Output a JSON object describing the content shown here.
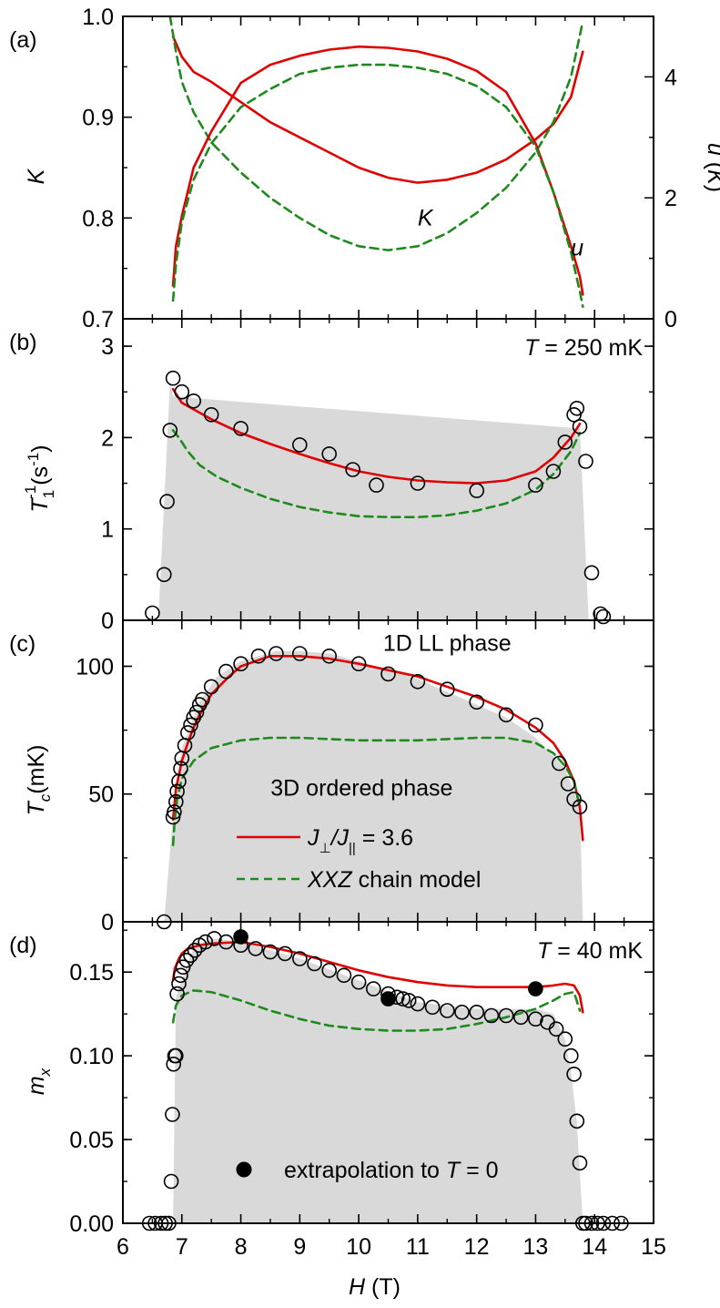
{
  "chart_data": [
    {
      "panel_label": "(a)",
      "type": "line",
      "xlim": [
        6,
        15
      ],
      "ylabel": "K",
      "ylim": [
        0.7,
        1.0
      ],
      "yticks": [
        "0.7",
        "0.8",
        "0.9",
        "1.0"
      ],
      "y2label": "u (K)",
      "y2lim": [
        0,
        5
      ],
      "y2ticks": [
        "0",
        "2",
        "4"
      ],
      "annotations": [
        "K",
        "u"
      ],
      "series": [
        {
          "role": "K-red",
          "axis": "left",
          "color": "#e00000",
          "style": "solid",
          "x": [
            6.85,
            7.0,
            7.2,
            7.5,
            8.0,
            8.5,
            9.0,
            9.5,
            10.0,
            10.5,
            11.0,
            11.5,
            12.0,
            12.5,
            13.0,
            13.3,
            13.6,
            13.8
          ],
          "y": [
            0.98,
            0.96,
            0.945,
            0.935,
            0.915,
            0.895,
            0.88,
            0.865,
            0.85,
            0.84,
            0.835,
            0.838,
            0.845,
            0.858,
            0.878,
            0.893,
            0.92,
            0.965
          ]
        },
        {
          "role": "K-green",
          "axis": "left",
          "color": "#1e8a1e",
          "style": "dashed",
          "x": [
            6.8,
            6.9,
            7.0,
            7.2,
            7.5,
            8.0,
            8.5,
            9.0,
            9.5,
            10.0,
            10.5,
            11.0,
            11.5,
            12.0,
            12.5,
            13.0,
            13.3,
            13.6,
            13.8
          ],
          "y": [
            1.0,
            0.965,
            0.935,
            0.905,
            0.875,
            0.845,
            0.82,
            0.8,
            0.783,
            0.772,
            0.768,
            0.772,
            0.785,
            0.805,
            0.83,
            0.865,
            0.895,
            0.94,
            0.995
          ]
        },
        {
          "role": "u-red",
          "axis": "right",
          "color": "#e00000",
          "style": "solid",
          "x": [
            6.85,
            6.9,
            7.0,
            7.2,
            7.5,
            8.0,
            8.5,
            9.0,
            9.5,
            10.0,
            10.5,
            11.0,
            11.5,
            12.0,
            12.5,
            13.0,
            13.3,
            13.6,
            13.75,
            13.8
          ],
          "y": [
            0.55,
            1.2,
            1.7,
            2.5,
            3.1,
            3.9,
            4.2,
            4.35,
            4.45,
            4.5,
            4.48,
            4.42,
            4.3,
            4.1,
            3.75,
            2.9,
            2.1,
            1.2,
            0.7,
            0.4
          ]
        },
        {
          "role": "u-green",
          "axis": "right",
          "color": "#1e8a1e",
          "style": "dashed",
          "x": [
            6.85,
            6.9,
            7.0,
            7.2,
            7.5,
            8.0,
            8.5,
            9.0,
            9.5,
            10.0,
            10.5,
            11.0,
            11.5,
            12.0,
            12.5,
            13.0,
            13.3,
            13.6,
            13.75,
            13.8
          ],
          "y": [
            0.3,
            0.9,
            1.6,
            2.3,
            2.9,
            3.5,
            3.8,
            4.05,
            4.15,
            4.2,
            4.2,
            4.15,
            4.05,
            3.85,
            3.5,
            2.85,
            2.1,
            1.1,
            0.45,
            0.2
          ]
        }
      ]
    },
    {
      "panel_label": "(b)",
      "type": "scatter",
      "xlim": [
        6,
        15
      ],
      "ylabel": "T₁⁻¹(s⁻¹)",
      "ylim": [
        0,
        3.3
      ],
      "yticks": [
        "0",
        "1",
        "2",
        "3"
      ],
      "annotation": "T = 250 mK",
      "shade": {
        "x": [
          6.6,
          6.8,
          6.85,
          13.75,
          13.9
        ],
        "y": [
          0,
          2.6,
          2.45,
          2.1,
          0
        ]
      },
      "points": {
        "x": [
          6.5,
          6.7,
          6.75,
          6.8,
          6.85,
          7.0,
          7.2,
          7.5,
          8.0,
          9.0,
          9.5,
          9.9,
          10.3,
          11.0,
          12.0,
          13.0,
          13.3,
          13.5,
          13.65,
          13.7,
          13.75,
          13.85,
          13.95,
          14.1,
          14.15
        ],
        "y": [
          0.08,
          0.5,
          1.3,
          2.08,
          2.65,
          2.5,
          2.4,
          2.25,
          2.1,
          1.92,
          1.82,
          1.65,
          1.48,
          1.5,
          1.42,
          1.48,
          1.63,
          1.95,
          2.25,
          2.32,
          2.12,
          1.74,
          0.52,
          0.07,
          0.04
        ]
      },
      "series": [
        {
          "role": "red",
          "color": "#e00000",
          "style": "solid",
          "x": [
            6.85,
            7.0,
            7.5,
            8.0,
            8.5,
            9.0,
            9.5,
            10.0,
            10.5,
            11.0,
            11.5,
            12.0,
            12.5,
            13.0,
            13.3,
            13.6,
            13.75
          ],
          "y": [
            2.53,
            2.38,
            2.2,
            2.05,
            1.93,
            1.82,
            1.72,
            1.63,
            1.57,
            1.53,
            1.51,
            1.5,
            1.53,
            1.63,
            1.78,
            2.0,
            2.15
          ]
        },
        {
          "role": "green",
          "color": "#1e8a1e",
          "style": "dashed",
          "x": [
            6.85,
            6.95,
            7.1,
            7.3,
            7.6,
            8.0,
            8.5,
            9.0,
            9.5,
            10.0,
            10.5,
            11.0,
            11.5,
            12.0,
            12.5,
            13.0,
            13.3,
            13.6,
            13.75
          ],
          "y": [
            2.08,
            2.0,
            1.85,
            1.7,
            1.57,
            1.45,
            1.33,
            1.24,
            1.18,
            1.14,
            1.13,
            1.13,
            1.15,
            1.2,
            1.28,
            1.43,
            1.6,
            1.85,
            2.05
          ]
        }
      ]
    },
    {
      "panel_label": "(c)",
      "type": "scatter",
      "xlim": [
        6,
        15
      ],
      "ylabel": "Tc (mK)",
      "ylim": [
        0,
        118
      ],
      "yticks": [
        "0",
        "50",
        "100"
      ],
      "annotations": [
        "1D LL phase",
        "3D ordered phase"
      ],
      "legend": [
        {
          "label_parts": [
            "J",
            "⊥",
            "/J",
            "||",
            " = 3.6"
          ],
          "color": "#e00000",
          "style": "solid"
        },
        {
          "label_parts": [
            "XXZ",
            " chain model"
          ],
          "color": "#1e8a1e",
          "style": "dashed"
        }
      ],
      "shade": {
        "x": [
          6.7,
          6.85,
          7.0,
          7.3,
          7.6,
          8.0,
          8.6,
          9.0,
          9.5,
          10.0,
          11.0,
          12.0,
          12.5,
          13.0,
          13.5,
          13.75,
          13.8
        ],
        "y": [
          0,
          42,
          68,
          86,
          96,
          102,
          106,
          106,
          105,
          102,
          95,
          85,
          80,
          72,
          60,
          45,
          0
        ]
      },
      "points": {
        "x": [
          6.7,
          6.85,
          6.87,
          6.9,
          6.92,
          6.95,
          6.98,
          7.0,
          7.05,
          7.1,
          7.15,
          7.2,
          7.25,
          7.3,
          7.35,
          7.5,
          7.75,
          8.0,
          8.3,
          8.6,
          9.0,
          9.5,
          10.0,
          10.5,
          11.0,
          11.5,
          12.0,
          12.5,
          13.0,
          13.4,
          13.55,
          13.65,
          13.75
        ],
        "y": [
          0,
          41,
          43,
          47,
          51,
          55,
          60,
          64,
          69,
          74,
          77,
          80,
          82,
          85,
          87,
          92,
          98,
          101,
          104,
          105,
          105,
          104,
          101,
          97,
          94,
          91,
          86,
          81,
          77,
          62,
          54,
          48,
          45
        ]
      },
      "series": [
        {
          "role": "red",
          "color": "#e00000",
          "style": "solid",
          "x": [
            6.85,
            6.9,
            7.0,
            7.1,
            7.2,
            7.3,
            7.5,
            7.8,
            8.0,
            8.5,
            9.0,
            9.5,
            10.0,
            11.0,
            12.0,
            12.5,
            13.0,
            13.3,
            13.5,
            13.65,
            13.75,
            13.8
          ],
          "y": [
            40,
            52,
            63,
            70,
            76,
            81,
            89,
            96,
            100,
            104,
            104,
            103,
            101,
            96,
            88,
            83,
            76,
            70,
            63,
            55,
            45,
            32
          ]
        },
        {
          "role": "green",
          "color": "#1e8a1e",
          "style": "dashed",
          "x": [
            6.85,
            6.88,
            6.92,
            7.0,
            7.2,
            7.5,
            8.0,
            8.5,
            9.0,
            10.0,
            11.0,
            12.0,
            12.5,
            13.0,
            13.3,
            13.5,
            13.65,
            13.75
          ],
          "y": [
            30,
            40,
            48,
            56,
            63,
            68,
            71,
            72,
            72,
            71,
            71,
            72,
            72,
            70,
            66,
            61,
            55,
            45
          ]
        }
      ]
    },
    {
      "panel_label": "(d)",
      "type": "scatter",
      "xlim": [
        6,
        15
      ],
      "xlabel": "H (T)",
      "xticks": [
        "6",
        "7",
        "8",
        "9",
        "10",
        "11",
        "12",
        "13",
        "14",
        "15"
      ],
      "ylabel": "mx",
      "ylim": [
        0,
        0.18
      ],
      "yticks": [
        "0.00",
        "0.05",
        "0.10",
        "0.15"
      ],
      "annotation": "T = 40 mK",
      "legend": [
        {
          "label_parts": [
            "extrapolation to ",
            "T",
            " = 0"
          ],
          "marker": "filled-circle"
        }
      ],
      "shade": {
        "x": [
          6.85,
          6.9,
          7.2,
          7.5,
          8.0,
          9.0,
          10.0,
          11.0,
          12.0,
          13.0,
          13.3,
          13.5,
          13.6,
          13.7,
          13.8
        ],
        "y": [
          0,
          0.135,
          0.165,
          0.17,
          0.168,
          0.158,
          0.145,
          0.132,
          0.128,
          0.128,
          0.125,
          0.11,
          0.09,
          0.06,
          0
        ]
      },
      "points": {
        "x": [
          6.45,
          6.55,
          6.65,
          6.72,
          6.78,
          6.82,
          6.84,
          6.86,
          6.88,
          6.9,
          6.92,
          6.95,
          6.98,
          7.02,
          7.08,
          7.15,
          7.22,
          7.3,
          7.4,
          7.55,
          7.75,
          8.0,
          8.25,
          8.5,
          8.75,
          9.0,
          9.25,
          9.5,
          9.75,
          10.0,
          10.25,
          10.5,
          10.65,
          10.75,
          10.85,
          11.0,
          11.25,
          11.5,
          11.75,
          12.0,
          12.25,
          12.5,
          12.75,
          13.0,
          13.2,
          13.35,
          13.5,
          13.6,
          13.65,
          13.7,
          13.75,
          13.8,
          13.85,
          13.95,
          14.05,
          14.15,
          14.3,
          14.45
        ],
        "y": [
          0,
          0,
          0,
          0,
          0,
          0.025,
          0.065,
          0.095,
          0.1,
          0.1,
          0.137,
          0.143,
          0.148,
          0.153,
          0.157,
          0.16,
          0.163,
          0.166,
          0.168,
          0.17,
          0.168,
          0.166,
          0.164,
          0.162,
          0.161,
          0.158,
          0.155,
          0.151,
          0.148,
          0.144,
          0.14,
          0.137,
          0.135,
          0.134,
          0.133,
          0.131,
          0.129,
          0.127,
          0.126,
          0.126,
          0.124,
          0.124,
          0.123,
          0.122,
          0.12,
          0.116,
          0.11,
          0.1,
          0.089,
          0.061,
          0.036,
          0,
          0,
          0,
          0,
          0,
          0,
          0
        ]
      },
      "filled_points": {
        "x": [
          8.0,
          10.5,
          13.0
        ],
        "y": [
          0.171,
          0.134,
          0.14
        ]
      },
      "series": [
        {
          "role": "red",
          "color": "#e00000",
          "style": "solid",
          "x": [
            6.85,
            6.88,
            6.95,
            7.0,
            7.1,
            7.3,
            7.5,
            8.0,
            8.5,
            9.0,
            9.5,
            10.0,
            10.5,
            11.0,
            11.5,
            12.0,
            12.5,
            13.0,
            13.3,
            13.5,
            13.65,
            13.75,
            13.8
          ],
          "y": [
            0.145,
            0.152,
            0.158,
            0.161,
            0.164,
            0.166,
            0.167,
            0.168,
            0.165,
            0.161,
            0.156,
            0.151,
            0.147,
            0.144,
            0.142,
            0.141,
            0.141,
            0.141,
            0.142,
            0.143,
            0.142,
            0.136,
            0.126
          ]
        },
        {
          "role": "green",
          "color": "#1e8a1e",
          "style": "dashed",
          "x": [
            6.85,
            6.9,
            7.0,
            7.2,
            7.5,
            8.0,
            8.5,
            9.0,
            9.5,
            10.0,
            10.5,
            11.0,
            11.5,
            12.0,
            12.5,
            13.0,
            13.3,
            13.5,
            13.65,
            13.75
          ],
          "y": [
            0.12,
            0.13,
            0.136,
            0.139,
            0.138,
            0.133,
            0.127,
            0.122,
            0.118,
            0.116,
            0.115,
            0.115,
            0.116,
            0.119,
            0.123,
            0.128,
            0.133,
            0.137,
            0.138,
            0.127
          ]
        }
      ]
    }
  ]
}
